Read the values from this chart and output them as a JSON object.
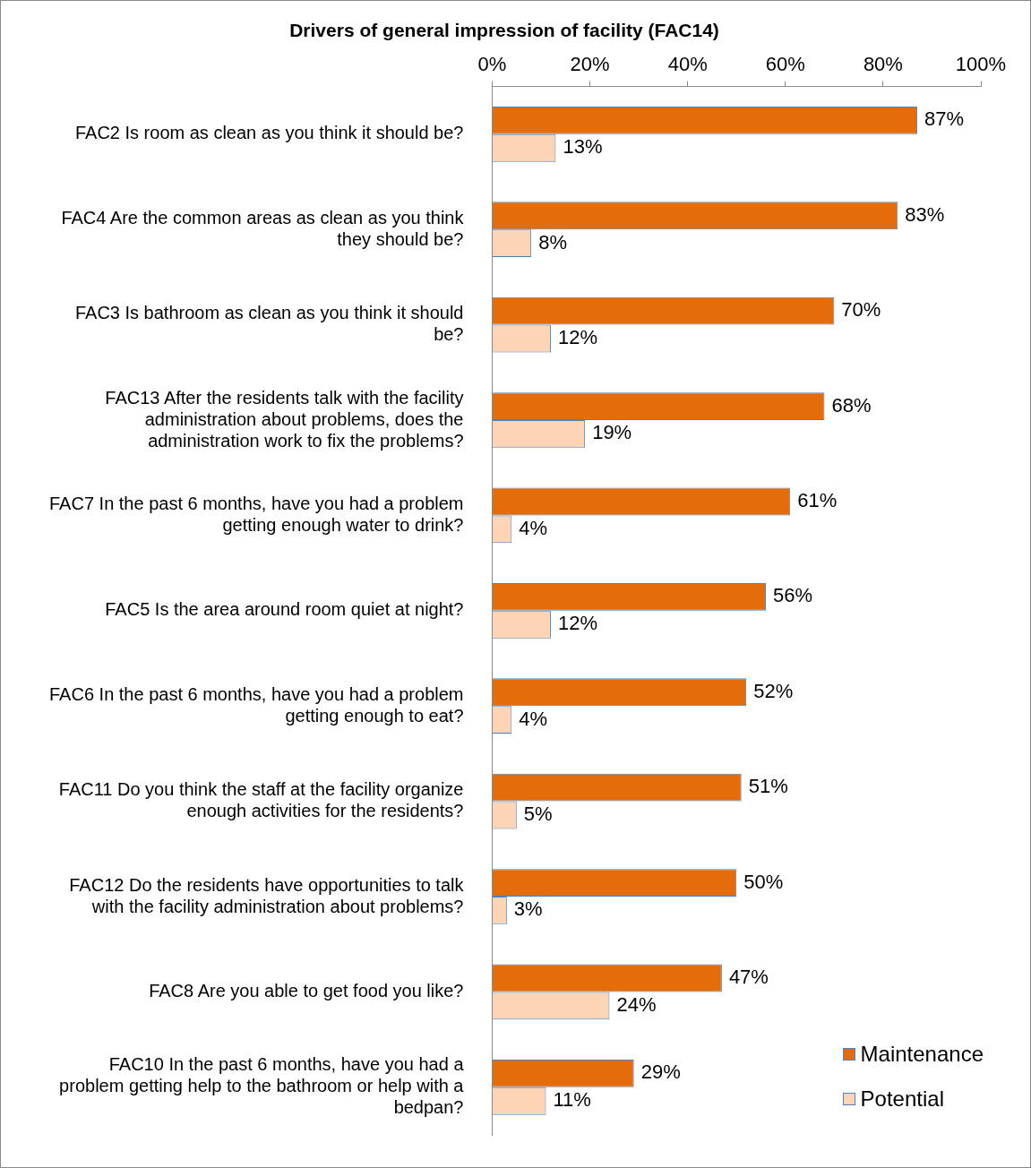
{
  "chart_data": {
    "type": "bar",
    "orientation": "horizontal",
    "title": "Drivers of general impression of facility (FAC14)",
    "categories": [
      "FAC2 Is room as clean as you think it should be?",
      "FAC4 Are the common areas as clean as you think they should be?",
      "FAC3 Is bathroom as clean as you think it should be?",
      "FAC13 After the residents talk with the facility administration about problems, does the administration work to fix the problems?",
      "FAC7 In the past 6 months, have you had a problem getting enough water to drink?",
      "FAC5 Is the area around room quiet at night?",
      "FAC6 In the past 6 months, have you had a problem getting enough to eat?",
      "FAC11 Do you think the staff at the facility organize enough activities for the residents?",
      "FAC12 Do the residents have opportunities to talk with the facility administration about problems?",
      "FAC8 Are you able to get food you like?",
      "FAC10 In the past 6 months, have you had a problem getting help to the bathroom or help with a bedpan?"
    ],
    "series": [
      {
        "name": "Maintenance",
        "color": "#e46c0a",
        "values": [
          87,
          83,
          70,
          68,
          61,
          56,
          52,
          51,
          50,
          47,
          29
        ],
        "value_labels": [
          "87%",
          "83%",
          "70%",
          "68%",
          "61%",
          "56%",
          "52%",
          "51%",
          "50%",
          "47%",
          "29%"
        ]
      },
      {
        "name": "Potential",
        "color": "#fbd5b5",
        "values": [
          13,
          8,
          12,
          19,
          4,
          12,
          4,
          5,
          3,
          24,
          11
        ],
        "value_labels": [
          "13%",
          "8%",
          "12%",
          "19%",
          "4%",
          "12%",
          "4%",
          "5%",
          "3%",
          "24%",
          "11%"
        ]
      }
    ],
    "xlim": [
      0,
      100
    ],
    "xticks": [
      {
        "value": 0,
        "label": "0%"
      },
      {
        "value": 20,
        "label": "20%"
      },
      {
        "value": 40,
        "label": "40%"
      },
      {
        "value": 60,
        "label": "60%"
      },
      {
        "value": 80,
        "label": "80%"
      },
      {
        "value": 100,
        "label": "100%"
      }
    ],
    "legend": "bottom right"
  }
}
